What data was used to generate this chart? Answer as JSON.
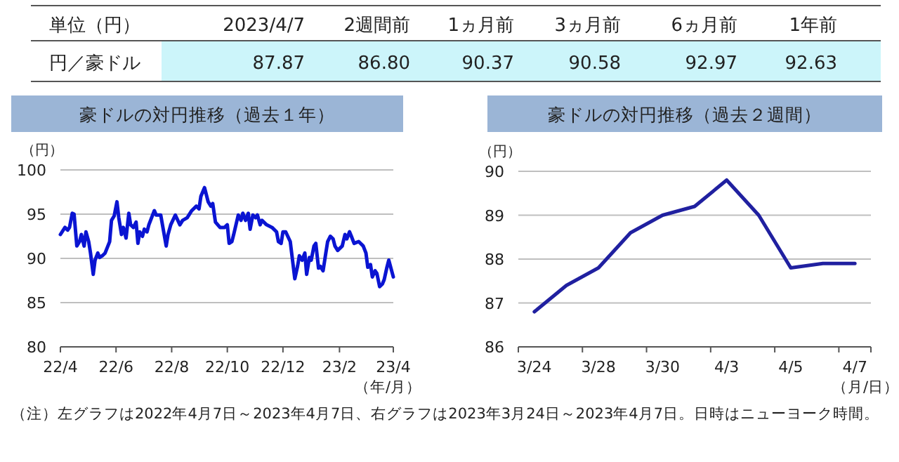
{
  "chart_data": [
    {
      "type": "other",
      "title": "単位（円）",
      "categories": [
        "2023/4/7",
        "2週間前",
        "1ヵ月前",
        "3ヵ月前",
        "6ヵ月前",
        "1年前"
      ],
      "series": [
        {
          "name": "円／豪ドル",
          "color": "#ccf5fa",
          "values": [
            87.87,
            86.8,
            90.37,
            90.58,
            92.97,
            92.63
          ],
          "value_labels": [
            "87.87",
            "86.80",
            "90.37",
            "90.58",
            "92.97",
            "92.63"
          ]
        }
      ],
      "annotations": [
        "（注）左グラフは2022年4月7日～2023年4月7日、右グラフは2023年3月24日～2023年4月7日。日時はニューヨーク時間。"
      ]
    },
    {
      "type": "line",
      "title": "豪ドルの対円推移（過去１年）",
      "ylabel": "（円）",
      "xlabel": "（年/月）",
      "grid": "y",
      "xlim": [
        "2022-04-07",
        "2023-04-07"
      ],
      "xticks": [
        {
          "value": "2022-04-07",
          "label": "22/4"
        },
        {
          "value": "2022-06-07",
          "label": "22/6"
        },
        {
          "value": "2022-08-07",
          "label": "22/8"
        },
        {
          "value": "2022-10-07",
          "label": "22/10"
        },
        {
          "value": "2022-12-07",
          "label": "22/12"
        },
        {
          "value": "2023-02-07",
          "label": "23/2"
        },
        {
          "value": "2023-04-07",
          "label": "23/4"
        }
      ],
      "ylim": [
        80,
        100
      ],
      "yticks": [
        80,
        85,
        90,
        95,
        100
      ],
      "x": [
        "2022-04-07",
        "2022-04-12",
        "2022-04-15",
        "2022-04-17",
        "2022-04-20",
        "2022-04-22",
        "2022-04-25",
        "2022-04-28",
        "2022-04-30",
        "2022-05-03",
        "2022-05-05",
        "2022-05-08",
        "2022-05-10",
        "2022-05-13",
        "2022-05-15",
        "2022-05-18",
        "2022-05-20",
        "2022-05-23",
        "2022-05-26",
        "2022-05-31",
        "2022-06-02",
        "2022-06-05",
        "2022-06-08",
        "2022-06-10",
        "2022-06-13",
        "2022-06-15",
        "2022-06-18",
        "2022-06-21",
        "2022-06-23",
        "2022-06-26",
        "2022-06-29",
        "2022-07-01",
        "2022-07-03",
        "2022-07-06",
        "2022-07-08",
        "2022-07-11",
        "2022-07-13",
        "2022-07-19",
        "2022-07-21",
        "2022-07-26",
        "2022-08-01",
        "2022-08-03",
        "2022-08-06",
        "2022-08-11",
        "2022-08-16",
        "2022-08-19",
        "2022-08-24",
        "2022-08-29",
        "2022-09-03",
        "2022-09-06",
        "2022-09-08",
        "2022-09-12",
        "2022-09-16",
        "2022-09-19",
        "2022-09-21",
        "2022-09-24",
        "2022-09-29",
        "2022-10-04",
        "2022-10-07",
        "2022-10-09",
        "2022-10-12",
        "2022-10-14",
        "2022-10-19",
        "2022-10-22",
        "2022-10-24",
        "2022-10-27",
        "2022-10-30",
        "2022-11-01",
        "2022-11-04",
        "2022-11-07",
        "2022-11-09",
        "2022-11-12",
        "2022-11-14",
        "2022-11-19",
        "2022-11-25",
        "2022-11-30",
        "2022-12-02",
        "2022-12-05",
        "2022-12-07",
        "2022-12-10",
        "2022-12-15",
        "2022-12-20",
        "2022-12-23",
        "2022-12-25",
        "2022-12-28",
        "2022-12-31",
        "2023-01-02",
        "2023-01-05",
        "2023-01-07",
        "2023-01-10",
        "2023-01-12",
        "2023-01-15",
        "2023-01-17",
        "2023-01-20",
        "2023-01-23",
        "2023-01-25",
        "2023-01-28",
        "2023-01-31",
        "2023-02-02",
        "2023-02-05",
        "2023-02-07",
        "2023-02-10",
        "2023-02-13",
        "2023-02-15",
        "2023-02-18",
        "2023-02-20",
        "2023-02-23",
        "2023-02-28",
        "2023-03-05",
        "2023-03-08",
        "2023-03-10",
        "2023-03-13",
        "2023-03-15",
        "2023-03-18",
        "2023-03-20",
        "2023-03-23",
        "2023-03-26",
        "2023-03-28",
        "2023-03-31",
        "2023-04-02",
        "2023-04-07"
      ],
      "series": [
        {
          "color": "#0a14d2",
          "values": [
            92.7,
            93.5,
            93.2,
            93.5,
            95.1,
            95.0,
            91.4,
            91.9,
            92.7,
            91.4,
            93.0,
            91.9,
            90.6,
            88.2,
            89.8,
            90.6,
            90.1,
            90.3,
            90.6,
            91.9,
            94.3,
            94.8,
            96.4,
            94.6,
            92.7,
            93.5,
            92.3,
            95.1,
            93.8,
            93.5,
            94.1,
            91.7,
            93.0,
            92.5,
            93.3,
            93.0,
            93.8,
            95.4,
            94.9,
            94.9,
            91.4,
            92.7,
            93.8,
            94.9,
            93.8,
            94.3,
            94.6,
            95.4,
            95.9,
            95.6,
            97.0,
            98.0,
            96.4,
            95.9,
            96.2,
            94.1,
            93.5,
            93.5,
            93.8,
            91.7,
            91.9,
            92.7,
            94.9,
            94.3,
            95.1,
            94.3,
            95.1,
            93.3,
            94.9,
            94.6,
            94.9,
            93.8,
            94.3,
            93.8,
            93.5,
            93.0,
            91.9,
            91.7,
            93.0,
            93.0,
            91.9,
            87.7,
            89.1,
            90.3,
            89.8,
            90.6,
            88.2,
            90.1,
            89.8,
            91.4,
            91.7,
            88.9,
            89.1,
            88.6,
            90.6,
            91.9,
            92.5,
            92.2,
            91.4,
            90.9,
            91.1,
            91.4,
            92.7,
            92.2,
            93.0,
            92.5,
            91.7,
            91.9,
            91.4,
            90.6,
            89.0,
            89.3,
            87.9,
            88.6,
            88.3,
            86.8,
            87.1,
            87.6,
            89.0,
            89.8,
            87.9
          ]
        }
      ]
    },
    {
      "type": "line",
      "title": "豪ドルの対円推移（過去２週間）",
      "ylabel": "（円）",
      "xlabel": "（月/日）",
      "grid": "y",
      "categories": [
        "3/24",
        null,
        "3/28",
        null,
        "3/30",
        null,
        "4/3",
        null,
        "4/5",
        null,
        "4/7"
      ],
      "ylim": [
        86,
        90
      ],
      "yticks": [
        86,
        87,
        88,
        89,
        90
      ],
      "series": [
        {
          "color": "#2020a0",
          "values": [
            86.8,
            87.4,
            87.8,
            88.6,
            89.0,
            89.2,
            89.8,
            89.0,
            87.8,
            87.9,
            87.9
          ]
        }
      ]
    }
  ]
}
